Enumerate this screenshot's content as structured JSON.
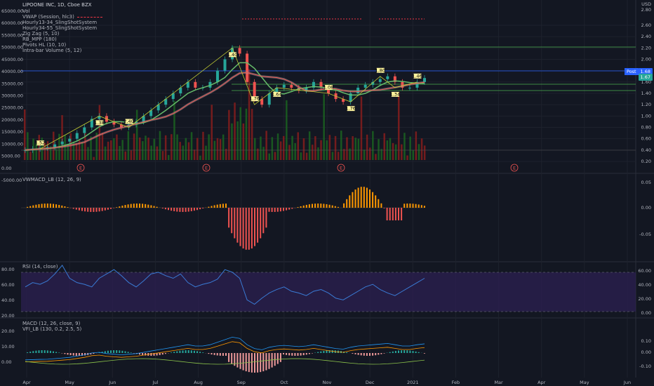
{
  "header": {
    "symbol_line": "LIPOONE INC, 1D, Cboe BZX",
    "indicators": [
      "Vol",
      "VWAP (Session, hlc3)",
      "Hourly13-34_SlingShotSystem",
      "Hourly34-55_SlingShotSystem",
      "Zig Zag (5, 10)",
      "RB_MPP (180)",
      "Pivots HL (10, 10)",
      "Intra-bar Volume (5, 12)"
    ]
  },
  "panes": {
    "vwmacd_title": "VWMACD_LB (12, 26, 9)",
    "rsi_title": "RSI (14, close)",
    "macd_title": "MACD (12, 26, close, 9)",
    "vfi_title": "VFI_LB (130, 0.2, 2.5, 5)"
  },
  "price_tags": {
    "post_label": "Post",
    "post_price": "1.68",
    "last_price": "1.67",
    "post_color": "#2962ff",
    "last_color": "#26a69a"
  },
  "colors": {
    "up": "#26a69a",
    "down": "#ef5350",
    "green_line": "#4caf50",
    "rsi_band": "#2a1f4f",
    "rsi_line": "#3a7bd5"
  },
  "chart_data": {
    "type": "line",
    "x_ticks": [
      "Apr",
      "May",
      "Jun",
      "Jul",
      "Aug",
      "Sep",
      "Oct",
      "Nov",
      "Dec",
      "2021",
      "Feb",
      "Mar",
      "Apr",
      "May",
      "Jun"
    ],
    "price_axis": [
      "2.60",
      "2.40",
      "2.20",
      "2.00",
      "1.80",
      "1.60",
      "1.40",
      "1.20",
      "1.00",
      "0.80",
      "0.60",
      "0.40",
      "0.20"
    ],
    "price_axis_top": [
      "USD",
      "2.80"
    ],
    "volume_axis": [
      "65000.00",
      "60000.00",
      "55000.00",
      "50000.00",
      "45000.00",
      "40000.00",
      "35000.00",
      "30000.00",
      "25000.00",
      "20000.00",
      "15000.00",
      "10000.00",
      "5000.00",
      "0.00",
      "-5000.00"
    ],
    "vwmacd_axis": [
      "0.05",
      "0.00",
      "-0.05"
    ],
    "rsi_axis_left": [
      "80.00",
      "60.00",
      "40.00",
      "20.00"
    ],
    "rsi_axis_right": [
      "60.00",
      "40.00",
      "20.00",
      "0.00"
    ],
    "macd_axis_left": [
      "20.00",
      "10.00",
      "0.00"
    ],
    "macd_axis_right": [
      "0.10",
      "0.00",
      "-0.10"
    ],
    "earnings_marker": "E",
    "pivot_labels": [
      "1.52",
      "1.38",
      "2.40",
      "1.40",
      "1.76",
      "1.64",
      "1.08",
      "1.76",
      "1.80",
      "1.34",
      "1.46"
    ],
    "price_close": [
      0.4,
      0.42,
      0.44,
      0.45,
      0.5,
      0.55,
      0.6,
      0.7,
      0.8,
      0.95,
      1.0,
      0.9,
      0.85,
      0.8,
      0.85,
      0.9,
      1.0,
      1.1,
      1.2,
      1.3,
      1.4,
      1.5,
      1.6,
      1.5,
      1.5,
      1.6,
      1.8,
      2.0,
      2.2,
      2.1,
      1.6,
      1.3,
      1.2,
      1.4,
      1.5,
      1.55,
      1.5,
      1.45,
      1.5,
      1.6,
      1.5,
      1.4,
      1.3,
      1.25,
      1.4,
      1.5,
      1.55,
      1.6,
      1.65,
      1.7,
      1.6,
      1.5,
      1.5,
      1.6,
      1.67
    ],
    "rsi_values": [
      55,
      60,
      58,
      62,
      70,
      80,
      65,
      60,
      58,
      55,
      65,
      70,
      75,
      68,
      60,
      55,
      62,
      70,
      72,
      68,
      65,
      70,
      60,
      55,
      58,
      60,
      64,
      75,
      72,
      65,
      40,
      35,
      42,
      48,
      52,
      55,
      50,
      48,
      45,
      50,
      52,
      48,
      42,
      40,
      45,
      50,
      55,
      58,
      52,
      48,
      45,
      50,
      55,
      60,
      65
    ]
  }
}
